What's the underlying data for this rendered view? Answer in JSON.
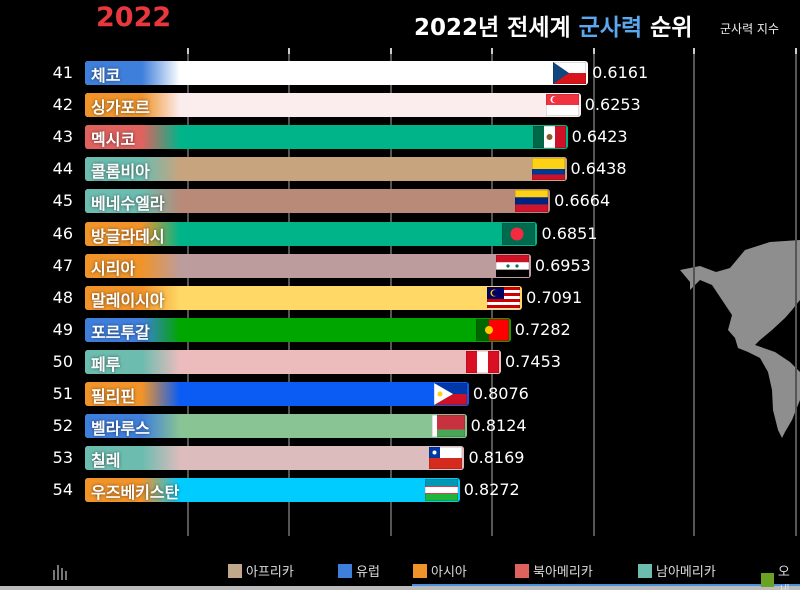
{
  "header": {
    "year": "2022",
    "title_prefix": "2022년 전세계 ",
    "title_highlight": "군사력",
    "title_suffix": " 순위",
    "subtitle": "군사력 지수"
  },
  "colors": {
    "year": "#e8383d",
    "highlight": "#5aa9f0"
  },
  "chart_data": {
    "type": "bar",
    "orientation": "horizontal",
    "title": "2022년 전세계 군사력 순위",
    "value_label": "군사력 지수",
    "grid": true,
    "legend_position": "bottom",
    "rows": [
      {
        "rank": "41",
        "name": "체코",
        "value": 0.6161,
        "region": "유럽",
        "flag": "czech",
        "color": "#ffffff"
      },
      {
        "rank": "42",
        "name": "싱가포르",
        "value": 0.6253,
        "region": "아시아",
        "flag": "singapore",
        "color": "#fbecee"
      },
      {
        "rank": "43",
        "name": "멕시코",
        "value": 0.6423,
        "region": "북아메리카",
        "flag": "mexico",
        "color": "#00b48a"
      },
      {
        "rank": "44",
        "name": "콜롬비아",
        "value": 0.6438,
        "region": "남아메리카",
        "flag": "colombia",
        "color": "#c8a47e"
      },
      {
        "rank": "45",
        "name": "베네수엘라",
        "value": 0.6664,
        "region": "남아메리카",
        "flag": "venezuela",
        "color": "#b98a78"
      },
      {
        "rank": "46",
        "name": "방글라데시",
        "value": 0.6851,
        "region": "아시아",
        "flag": "bangladesh",
        "color": "#00b48a"
      },
      {
        "rank": "47",
        "name": "시리아",
        "value": 0.6953,
        "region": "아시아",
        "flag": "syria",
        "color": "#bc9c9c"
      },
      {
        "rank": "48",
        "name": "말레이시아",
        "value": 0.7091,
        "region": "아시아",
        "flag": "malaysia",
        "color": "#ffd865"
      },
      {
        "rank": "49",
        "name": "포르투갈",
        "value": 0.7282,
        "region": "유럽",
        "flag": "portugal",
        "color": "#00a600"
      },
      {
        "rank": "50",
        "name": "페루",
        "value": 0.7453,
        "region": "남아메리카",
        "flag": "peru",
        "color": "#ecbcbc"
      },
      {
        "rank": "51",
        "name": "필리핀",
        "value": 0.8076,
        "region": "아시아",
        "flag": "philippines",
        "color": "#0a5cf5"
      },
      {
        "rank": "52",
        "name": "벨라루스",
        "value": 0.8124,
        "region": "유럽",
        "flag": "belarus",
        "color": "#88c494"
      },
      {
        "rank": "53",
        "name": "칠레",
        "value": 0.8169,
        "region": "남아메리카",
        "flag": "chile",
        "color": "#dcbcbc"
      },
      {
        "rank": "54",
        "name": "우즈베키스탄",
        "value": 0.8272,
        "region": "아시아",
        "flag": "uzbekistan",
        "color": "#00ccff"
      }
    ],
    "legend": [
      {
        "label": "아프리카",
        "color": "#c2a88a"
      },
      {
        "label": "유럽",
        "color": "#3f7fdc"
      },
      {
        "label": "아시아",
        "color": "#f0942a"
      },
      {
        "label": "북아메리카",
        "color": "#e0625e"
      },
      {
        "label": "남아메리카",
        "color": "#6cbcb0"
      },
      {
        "label": "오세",
        "color": "#6aa224"
      }
    ]
  }
}
